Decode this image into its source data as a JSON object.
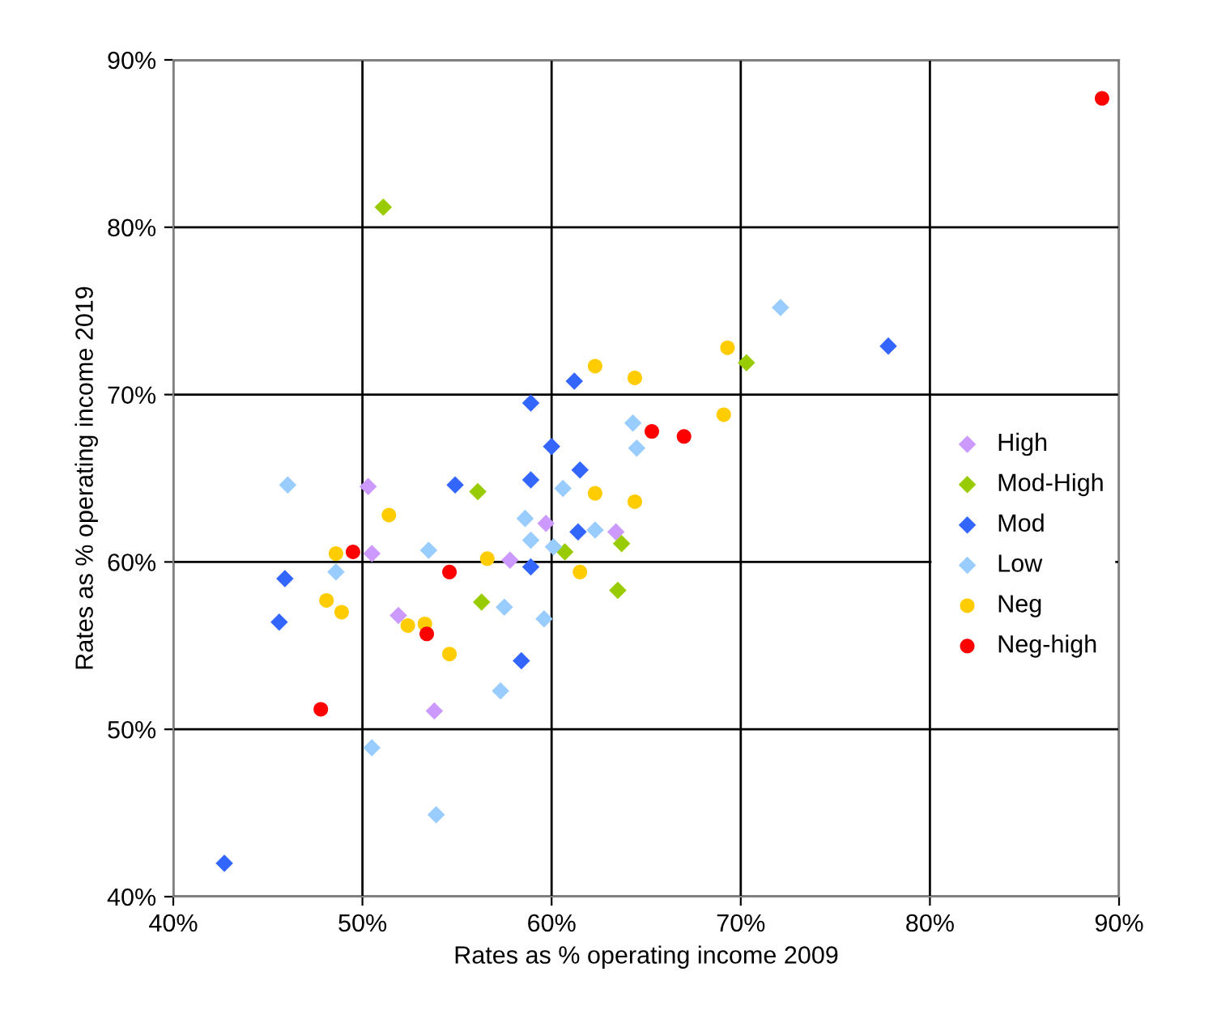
{
  "chart_data": {
    "type": "scatter",
    "xlabel": "Rates as % operating income 2009",
    "ylabel": "Rates as % operating income 2019",
    "xlim": [
      0.4,
      0.9
    ],
    "ylim": [
      0.4,
      0.9
    ],
    "xticks": [
      {
        "value": 0.4,
        "label": "40%"
      },
      {
        "value": 0.5,
        "label": "50%"
      },
      {
        "value": 0.6,
        "label": "60%"
      },
      {
        "value": 0.7,
        "label": "70%"
      },
      {
        "value": 0.8,
        "label": "80%"
      },
      {
        "value": 0.9,
        "label": "90%"
      }
    ],
    "yticks": [
      {
        "value": 0.4,
        "label": "40%"
      },
      {
        "value": 0.5,
        "label": "50%"
      },
      {
        "value": 0.6,
        "label": "60%"
      },
      {
        "value": 0.7,
        "label": "70%"
      },
      {
        "value": 0.8,
        "label": "80%"
      },
      {
        "value": 0.9,
        "label": "90%"
      }
    ],
    "grid": true,
    "legend": "right",
    "series": [
      {
        "name": "High",
        "color": "#cc99ff",
        "marker": "diamond",
        "x": [
          0.503,
          0.505,
          0.578,
          0.519,
          0.538,
          0.597,
          0.634
        ],
        "values": [
          0.645,
          0.605,
          0.601,
          0.568,
          0.511,
          0.623,
          0.618
        ]
      },
      {
        "name": "Mod-High",
        "color": "#99cc00",
        "marker": "diamond",
        "x": [
          0.561,
          0.563,
          0.511,
          0.703,
          0.607,
          0.637,
          0.635
        ],
        "values": [
          0.642,
          0.576,
          0.812,
          0.719,
          0.606,
          0.611,
          0.583
        ]
      },
      {
        "name": "Mod",
        "color": "#3366ff",
        "marker": "diamond",
        "x": [
          0.549,
          0.459,
          0.456,
          0.584,
          0.427,
          0.778,
          0.612,
          0.589,
          0.6,
          0.615,
          0.589,
          0.614,
          0.589
        ],
        "values": [
          0.646,
          0.59,
          0.564,
          0.541,
          0.42,
          0.729,
          0.708,
          0.695,
          0.669,
          0.655,
          0.649,
          0.618,
          0.597
        ]
      },
      {
        "name": "Low",
        "color": "#99ccff",
        "marker": "diamond",
        "x": [
          0.4605,
          0.586,
          0.589,
          0.535,
          0.486,
          0.575,
          0.573,
          0.505,
          0.539,
          0.721,
          0.643,
          0.645,
          0.606,
          0.623,
          0.601,
          0.596
        ],
        "values": [
          0.646,
          0.626,
          0.613,
          0.607,
          0.594,
          0.573,
          0.523,
          0.489,
          0.449,
          0.752,
          0.683,
          0.668,
          0.644,
          0.619,
          0.609,
          0.566
        ]
      },
      {
        "name": "Neg",
        "color": "#ffcc00",
        "marker": "circle",
        "x": [
          0.514,
          0.486,
          0.566,
          0.481,
          0.489,
          0.524,
          0.533,
          0.546,
          0.693,
          0.623,
          0.644,
          0.691,
          0.623,
          0.644,
          0.615
        ],
        "values": [
          0.628,
          0.605,
          0.602,
          0.577,
          0.57,
          0.562,
          0.563,
          0.545,
          0.728,
          0.717,
          0.71,
          0.688,
          0.641,
          0.636,
          0.594
        ]
      },
      {
        "name": "Neg-high",
        "color": "#ff0000",
        "marker": "circle",
        "x": [
          0.495,
          0.546,
          0.534,
          0.478,
          0.653,
          0.67,
          0.891
        ],
        "values": [
          0.606,
          0.594,
          0.557,
          0.512,
          0.678,
          0.675,
          0.877
        ]
      }
    ]
  }
}
